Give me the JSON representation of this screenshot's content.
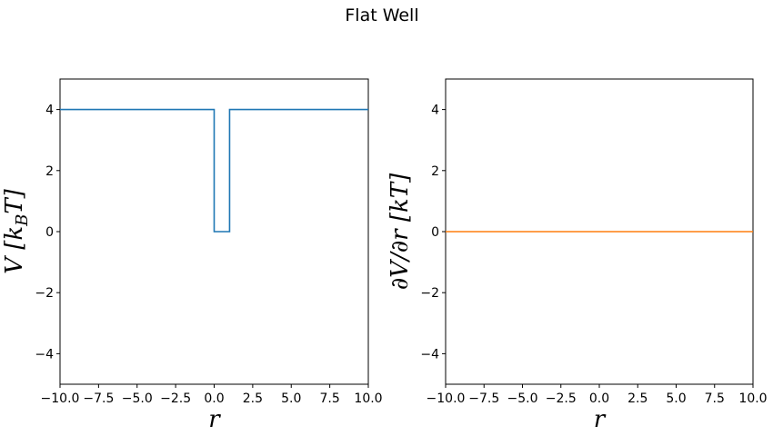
{
  "figure": {
    "title": "Flat Well"
  },
  "chart_data": [
    {
      "type": "line",
      "title": "",
      "xlabel": "r",
      "ylabel": "V [k_B T]",
      "ylabel_parts": {
        "main": "V [k",
        "sub": "B",
        "tail": "T]"
      },
      "xlim": [
        -10,
        10
      ],
      "ylim": [
        -5,
        5
      ],
      "xticks": [
        -10,
        -7.5,
        -5,
        -2.5,
        0,
        2.5,
        5,
        7.5,
        10
      ],
      "xtick_labels": [
        "−10.0",
        "−7.5",
        "−5.0",
        "−2.5",
        "0.0",
        "2.5",
        "5.0",
        "7.5",
        "10.0"
      ],
      "yticks": [
        -4,
        -2,
        0,
        2,
        4
      ],
      "ytick_labels": [
        "−4",
        "−2",
        "0",
        "2",
        "4"
      ],
      "grid": false,
      "series": [
        {
          "color": "#1f77b4",
          "x": [
            -10,
            0,
            0,
            1,
            1,
            10
          ],
          "y": [
            4,
            4,
            0,
            0,
            4,
            4
          ]
        }
      ]
    },
    {
      "type": "line",
      "title": "",
      "xlabel": "r",
      "ylabel": "∂V/∂r [kT]",
      "xlim": [
        -10,
        10
      ],
      "ylim": [
        -5,
        5
      ],
      "xticks": [
        -10,
        -7.5,
        -5,
        -2.5,
        0,
        2.5,
        5,
        7.5,
        10
      ],
      "xtick_labels": [
        "−10.0",
        "−7.5",
        "−5.0",
        "−2.5",
        "0.0",
        "2.5",
        "5.0",
        "7.5",
        "10.0"
      ],
      "yticks": [
        -4,
        -2,
        0,
        2,
        4
      ],
      "ytick_labels": [
        "−4",
        "−2",
        "0",
        "2",
        "4"
      ],
      "grid": false,
      "series": [
        {
          "color": "#ff7f0e",
          "x": [
            -10,
            10
          ],
          "y": [
            0,
            0
          ]
        }
      ]
    }
  ]
}
